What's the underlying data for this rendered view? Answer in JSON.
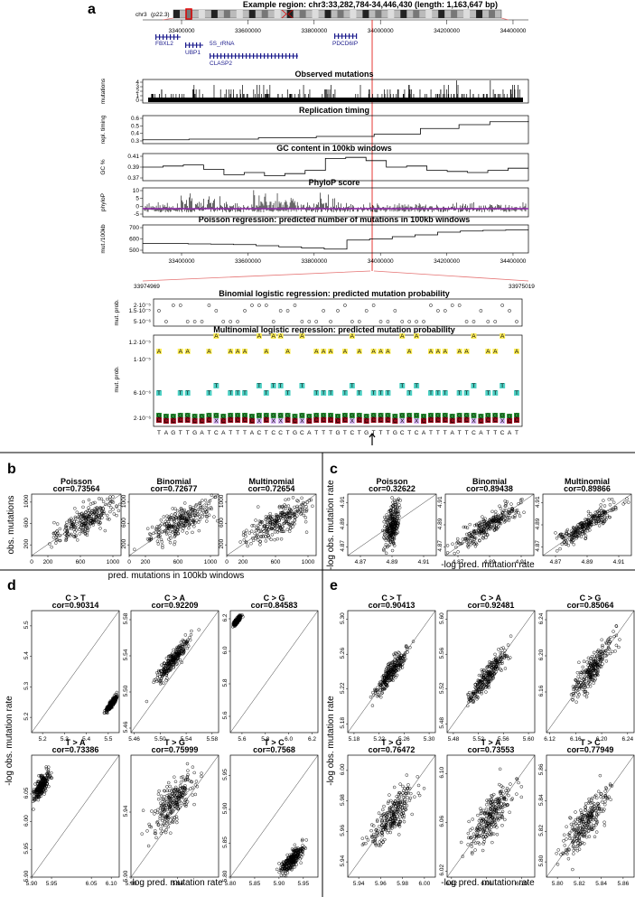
{
  "panel_labels": [
    "a",
    "b",
    "c",
    "d",
    "e"
  ],
  "panel_a": {
    "title": "Example region: chr3:33,282,784-34,446,430 (length: 1,163,647 bp)",
    "chrom_label": "chr3",
    "band_label": "(p22.3)",
    "genes": [
      "FBXL2",
      "5S_rRNA",
      "UBP1",
      "CLASP2",
      "PDCD6IP"
    ],
    "coord_ticks": [
      "33400000",
      "33600000",
      "33800000",
      "34000000",
      "34200000",
      "34400000"
    ],
    "tracks": [
      {
        "title": "Observed mutations",
        "ylabel": "mutations",
        "yticks": [
          "0",
          "1",
          "2",
          "3",
          "4"
        ]
      },
      {
        "title": "Replication timing",
        "ylabel": "repl. timing",
        "yticks": [
          "0.3",
          "0.4",
          "0.5",
          "0.6"
        ]
      },
      {
        "title": "GC content in 100kb windows",
        "ylabel": "GC %",
        "yticks": [
          "0.37",
          "0.39",
          "0.41"
        ]
      },
      {
        "title": "PhyloP score",
        "ylabel": "phyloP",
        "yticks": [
          "-5",
          "0",
          "5",
          "10"
        ]
      },
      {
        "title": "Poisson regression: predicted number of mutations in 100kb windows",
        "ylabel": "mut./100kb",
        "yticks": [
          "500",
          "600",
          "700"
        ]
      }
    ],
    "zoom_start": "33974969",
    "zoom_end": "33975019",
    "binomial": {
      "title": "Binomial logistic regression: predicted mutation probability",
      "ylabel": "mut. prob.",
      "yticks": [
        "5·10⁻⁶",
        "1.5·10⁻⁵",
        "2·10⁻⁵"
      ]
    },
    "multinomial": {
      "title": "Multinomial logistic regression: predicted mutation probability",
      "ylabel": "mut. prob.",
      "yticks": [
        "2·10⁻⁶",
        "6·10⁻⁶",
        "1·10⁻⁵",
        "1.2·10⁻⁵"
      ]
    },
    "sequence": "TAGTTGATCATTTACTCCTGCATTTGTCTGTTTGCTCATTTATTCATTCAT",
    "colors": {
      "A": "#ffee58",
      "T": "#4dd0c4",
      "G": "#2e9e3a",
      "C": "#9a0b1c",
      "X": "#d7b4f5"
    }
  },
  "chart_data": [
    {
      "id": "b",
      "type": "scatter",
      "xlabel": "pred. mutations in 100kb windows",
      "ylabel": "obs. mutations",
      "xlim": [
        0,
        1100
      ],
      "ylim": [
        0,
        1150
      ],
      "xticks": [
        "0",
        "200",
        "600",
        "1000"
      ],
      "yticks": [
        "200",
        "600",
        "1000"
      ],
      "subplots": [
        {
          "title": "Poisson",
          "cor": "cor=0.73564",
          "r": 0.74,
          "cx": 650,
          "cy": 640,
          "sx": 190,
          "sy": 200
        },
        {
          "title": "Binomial",
          "cor": "cor=0.72677",
          "r": 0.73,
          "cx": 630,
          "cy": 640,
          "sx": 200,
          "sy": 200
        },
        {
          "title": "Multinomial",
          "cor": "cor=0.72654",
          "r": 0.73,
          "cx": 640,
          "cy": 640,
          "sx": 200,
          "sy": 200
        }
      ]
    },
    {
      "id": "c",
      "type": "scatter",
      "xlabel": "-log pred. mutation rate",
      "ylabel": "-log obs. mutation rate",
      "xlim": [
        4.862,
        4.918
      ],
      "ylim": [
        4.862,
        4.918
      ],
      "xticks": [
        "4.87",
        "4.89",
        "4.91"
      ],
      "yticks": [
        "4.87",
        "4.89",
        "4.91"
      ],
      "subplots": [
        {
          "title": "Poisson",
          "cor": "cor=0.32622",
          "r": 0.33,
          "cx": 4.89,
          "cy": 4.889,
          "sx": 0.0022,
          "sy": 0.01
        },
        {
          "title": "Binomial",
          "cor": "cor=0.89438",
          "r": 0.89,
          "cx": 4.89,
          "cy": 4.89,
          "sx": 0.01,
          "sy": 0.01
        },
        {
          "title": "Multinomial",
          "cor": "cor=0.89866",
          "r": 0.9,
          "cx": 4.89,
          "cy": 4.89,
          "sx": 0.01,
          "sy": 0.01
        }
      ]
    },
    {
      "id": "d",
      "type": "scatter",
      "xlabel": "-log pred. mutation rate",
      "ylabel": "-log obs. mutation rate",
      "subplots": [
        {
          "title": "C > T",
          "cor": "cor=0.90314",
          "r": 0.9,
          "xlim": [
            5.15,
            5.55
          ],
          "ylim": [
            5.15,
            5.55
          ],
          "xticks": [
            "5.2",
            "5.3",
            "5.4",
            "5.5"
          ],
          "yticks": [
            "5.2",
            "5.3",
            "5.4",
            "5.5"
          ],
          "cx": 5.515,
          "cy": 5.245,
          "sx": 0.012,
          "sy": 0.012
        },
        {
          "title": "C > A",
          "cor": "cor=0.92209",
          "r": 0.92,
          "xlim": [
            5.455,
            5.59
          ],
          "ylim": [
            5.455,
            5.59
          ],
          "xticks": [
            "5.46",
            "5.50",
            "5.54",
            "5.58"
          ],
          "yticks": [
            "5.46",
            "5.50",
            "5.54",
            "5.58"
          ],
          "cx": 5.52,
          "cy": 5.535,
          "sx": 0.012,
          "sy": 0.012
        },
        {
          "title": "C > G",
          "cor": "cor=0.84583",
          "r": 0.85,
          "xlim": [
            5.5,
            6.25
          ],
          "ylim": [
            5.5,
            6.25
          ],
          "xticks": [
            "5.6",
            "5.8",
            "6.0",
            "6.2"
          ],
          "yticks": [
            "5.6",
            "5.8",
            "6.0",
            "6.2"
          ],
          "cx": 5.56,
          "cy": 6.19,
          "sx": 0.015,
          "sy": 0.015
        },
        {
          "title": "T > A",
          "cor": "cor=0.73386",
          "r": 0.73,
          "xlim": [
            5.9,
            6.12
          ],
          "ylim": [
            5.9,
            6.12
          ],
          "xticks": [
            "5.90",
            "5.95",
            "6.05",
            "6.10"
          ],
          "yticks": [
            "5.90",
            "5.95",
            "6.00",
            "6.05"
          ],
          "cx": 5.925,
          "cy": 6.065,
          "sx": 0.009,
          "sy": 0.012
        },
        {
          "title": "T > G",
          "cor": "cor=0.75999",
          "r": 0.76,
          "xlim": [
            5.9,
            5.975
          ],
          "ylim": [
            5.9,
            5.975
          ],
          "xticks": [
            "5.90",
            "5.94",
            "5.98"
          ],
          "yticks": [
            "5.90",
            "5.94",
            "5.98"
          ],
          "cx": 5.935,
          "cy": 5.945,
          "sx": 0.009,
          "sy": 0.009
        },
        {
          "title": "T > C",
          "cor": "cor=0.7568",
          "r": 0.76,
          "xlim": [
            5.8,
            5.98
          ],
          "ylim": [
            5.8,
            5.98
          ],
          "xticks": [
            "5.80",
            "5.85",
            "5.90",
            "5.95"
          ],
          "yticks": [
            "5.80",
            "5.85",
            "5.90",
            "5.95"
          ],
          "cx": 5.925,
          "cy": 5.825,
          "sx": 0.012,
          "sy": 0.01
        }
      ]
    },
    {
      "id": "e",
      "type": "scatter",
      "xlabel": "-log pred. mutation rate",
      "ylabel": "-log obs. mutation rate",
      "subplots": [
        {
          "title": "C > T",
          "cor": "cor=0.90413",
          "r": 0.9,
          "xlim": [
            5.17,
            5.31
          ],
          "ylim": [
            5.17,
            5.31
          ],
          "xticks": [
            "5.18",
            "5.22",
            "5.26",
            "5.30"
          ],
          "yticks": [
            "5.18",
            "5.22",
            "5.26",
            "5.30"
          ],
          "cx": 5.24,
          "cy": 5.24,
          "sx": 0.013,
          "sy": 0.013
        },
        {
          "title": "C > A",
          "cor": "cor=0.92481",
          "r": 0.92,
          "xlim": [
            5.47,
            5.61
          ],
          "ylim": [
            5.47,
            5.61
          ],
          "xticks": [
            "5.48",
            "5.52",
            "5.56",
            "5.60"
          ],
          "yticks": [
            "5.48",
            "5.52",
            "5.56",
            "5.60"
          ],
          "cx": 5.535,
          "cy": 5.535,
          "sx": 0.015,
          "sy": 0.015
        },
        {
          "title": "C > G",
          "cor": "cor=0.85064",
          "r": 0.85,
          "xlim": [
            6.115,
            6.25
          ],
          "ylim": [
            6.115,
            6.25
          ],
          "xticks": [
            "6.12",
            "6.16",
            "6.20",
            "6.24"
          ],
          "yticks": [
            "6.16",
            "6.20",
            "6.24"
          ],
          "cx": 6.185,
          "cy": 6.185,
          "sx": 0.015,
          "sy": 0.015
        },
        {
          "title": "T > G",
          "cor": "cor=0.76472",
          "r": 0.76,
          "xlim": [
            5.93,
            6.01
          ],
          "ylim": [
            5.93,
            6.01
          ],
          "xticks": [
            "5.94",
            "5.96",
            "5.98",
            "6.00"
          ],
          "yticks": [
            "5.94",
            "5.96",
            "5.98",
            "6.00"
          ],
          "cx": 5.97,
          "cy": 5.97,
          "sx": 0.01,
          "sy": 0.01
        },
        {
          "title": "T > A",
          "cor": "cor=0.73553",
          "r": 0.74,
          "xlim": [
            6.015,
            6.115
          ],
          "ylim": [
            6.015,
            6.115
          ],
          "xticks": [
            "6.02",
            "6.06",
            "6.10"
          ],
          "yticks": [
            "6.02",
            "6.06",
            "6.10"
          ],
          "cx": 6.065,
          "cy": 6.065,
          "sx": 0.012,
          "sy": 0.012
        },
        {
          "title": "T > C",
          "cor": "cor=0.77949",
          "r": 0.78,
          "xlim": [
            5.79,
            5.87
          ],
          "ylim": [
            5.79,
            5.87
          ],
          "xticks": [
            "5.80",
            "5.82",
            "5.84",
            "5.86"
          ],
          "yticks": [
            "5.80",
            "5.82",
            "5.84",
            "5.86"
          ],
          "cx": 5.825,
          "cy": 5.825,
          "sx": 0.01,
          "sy": 0.01
        }
      ]
    }
  ]
}
